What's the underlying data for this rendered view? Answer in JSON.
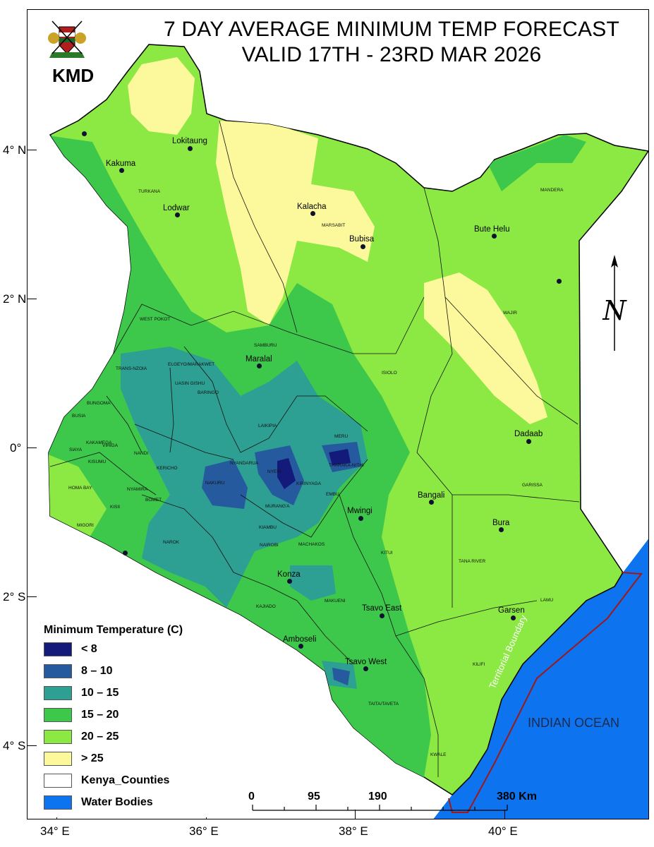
{
  "header": {
    "title_line1": "7 DAY AVERAGE MINIMUM TEMP FORECAST",
    "title_line2": "VALID 17TH - 23RD MAR 2026",
    "logo_text": "KMD"
  },
  "axes": {
    "latitude_labels": [
      "4° N",
      "2° N",
      "0°",
      "2° S",
      "4° S"
    ],
    "longitude_labels": [
      "34° E",
      "36° E",
      "38° E",
      "40° E"
    ]
  },
  "legend": {
    "title": "Minimum Temperature (C)",
    "items": [
      {
        "label": "< 8",
        "color": "#141a7a"
      },
      {
        "label": "8 – 10",
        "color": "#255b9e"
      },
      {
        "label": "10 – 15",
        "color": "#2e9f93"
      },
      {
        "label": "15 – 20",
        "color": "#3dc84b"
      },
      {
        "label": "20 – 25",
        "color": "#8ce843"
      },
      {
        "label": "> 25",
        "color": "#fbf99c"
      },
      {
        "label": "Kenya_Counties",
        "color": "#ffffff"
      },
      {
        "label": "Water Bodies",
        "color": "#0e73ee"
      }
    ]
  },
  "scale_bar": {
    "labels": [
      "0",
      "95",
      "190",
      "380 Km"
    ]
  },
  "places": [
    {
      "name": "Lokitaung"
    },
    {
      "name": "Kakuma"
    },
    {
      "name": "Lodwar"
    },
    {
      "name": "Kalacha"
    },
    {
      "name": "Bubisa"
    },
    {
      "name": "Bute Helu"
    },
    {
      "name": "Maralal"
    },
    {
      "name": "Dadaab"
    },
    {
      "name": "Bangali"
    },
    {
      "name": "Bura"
    },
    {
      "name": "Mwingi"
    },
    {
      "name": "Konza"
    },
    {
      "name": "Tsavo East"
    },
    {
      "name": "Garsen"
    },
    {
      "name": "Amboseli"
    },
    {
      "name": "Tsavo West"
    }
  ],
  "counties": [
    "TURKANA",
    "MARSABIT",
    "MANDERA",
    "WAJIR",
    "WEST POKOT",
    "SAMBURU",
    "ISIOLO",
    "TRANS-NZOIA",
    "BUSIA",
    "BUNGOMA",
    "ELGEYO/MARAKWET",
    "UASIN GISHU",
    "BARINGO",
    "LAIKIPIA",
    "MERU",
    "SIAYA",
    "KAKAMEGA",
    "VIHIGA",
    "NANDI",
    "KISUMU",
    "KERICHO",
    "NYANDARUA",
    "NYERI",
    "THARAKA-NITHI",
    "GARISSA",
    "HOMA BAY",
    "NYAMIRA",
    "NAKURU",
    "KIRINYAGA",
    "EMBU",
    "KISII",
    "BOMET",
    "MURANG'A",
    "MIGORI",
    "KIAMBU",
    "NAROK",
    "NAIROBI",
    "MACHAKOS",
    "KITUI",
    "TANA RIVER",
    "MAKUENI",
    "LAMU",
    "KAJIADO",
    "KILIFI",
    "TAITA/TAVETA",
    "KWALE"
  ],
  "ocean_label": "INDIAN OCEAN",
  "boundary_label": "Territorial Boundary",
  "north_arrow": "N"
}
